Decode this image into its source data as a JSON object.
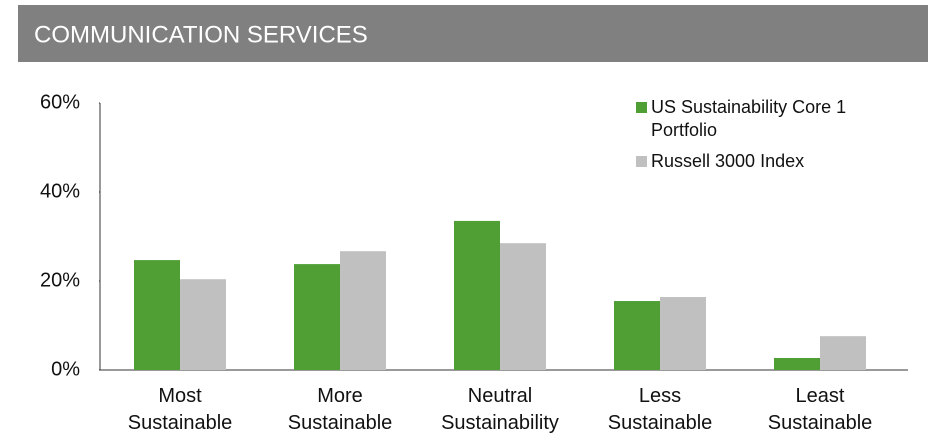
{
  "chart_data": {
    "type": "bar",
    "title": "COMMUNICATION SERVICES",
    "categories": [
      "Most Sustainable",
      "More Sustainable",
      "Neutral Sustainability",
      "Less Sustainable",
      "Least Sustainable"
    ],
    "series": [
      {
        "name": "US Sustainability Core 1 Portfolio",
        "color": "#4f9f35",
        "values": [
          24.7,
          23.8,
          33.5,
          15.5,
          2.7
        ]
      },
      {
        "name": "Russell 3000 Index",
        "color": "#c0c0c0",
        "values": [
          20.4,
          26.7,
          28.5,
          16.4,
          7.6
        ]
      }
    ],
    "ylim": [
      0,
      60
    ],
    "yticks": [
      {
        "value": 0,
        "label": "0%"
      },
      {
        "value": 20,
        "label": "20%"
      },
      {
        "value": 40,
        "label": "40%"
      },
      {
        "value": 60,
        "label": "60%"
      }
    ],
    "legend": "top-right"
  }
}
